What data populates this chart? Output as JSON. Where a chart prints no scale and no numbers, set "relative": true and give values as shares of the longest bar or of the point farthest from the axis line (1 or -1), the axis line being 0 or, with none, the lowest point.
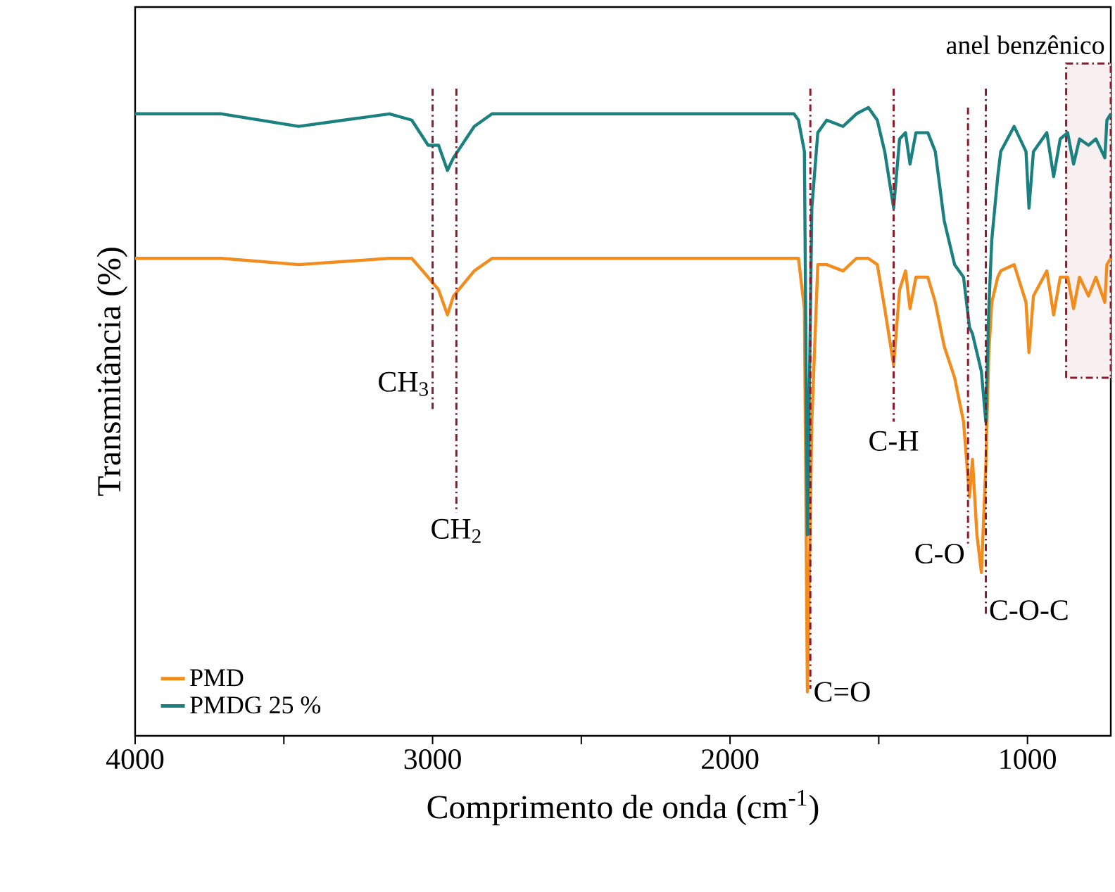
{
  "chart_data": {
    "type": "line",
    "relative": true,
    "xlabel": "Comprimento de onda (cm$^{-1}$)",
    "ylabel": "Transmitância (%)",
    "xlim": [
      4000,
      720
    ],
    "xticks": [
      4000,
      {
        "value": 3500,
        "label": null
      },
      3000,
      {
        "value": 2500,
        "label": null
      },
      2000,
      {
        "value": 1500,
        "label": null
      },
      1000
    ],
    "legend": "bottom left",
    "line_style": "solid",
    "x": [
      4000,
      3710,
      3450,
      3145,
      3070,
      3015,
      2980,
      2950,
      2930,
      2860,
      2800,
      1785,
      1770,
      1750,
      1740,
      1725,
      1705,
      1675,
      1620,
      1575,
      1535,
      1505,
      1480,
      1450,
      1430,
      1410,
      1395,
      1375,
      1335,
      1310,
      1280,
      1245,
      1215,
      1195,
      1185,
      1170,
      1155,
      1140,
      1130,
      1120,
      1100,
      1090,
      1045,
      1005,
      995,
      980,
      935,
      912,
      890,
      865,
      845,
      825,
      795,
      770,
      740,
      733,
      720
    ],
    "series": [
      {
        "name": "PMD",
        "color": "#f28c1c",
        "values": [
          0.76,
          0.76,
          0.75,
          0.76,
          0.76,
          0.73,
          0.71,
          0.67,
          0.7,
          0.74,
          0.76,
          0.76,
          0.76,
          0.68,
          0.07,
          0.5,
          0.75,
          0.75,
          0.74,
          0.76,
          0.76,
          0.75,
          0.68,
          0.59,
          0.71,
          0.74,
          0.68,
          0.73,
          0.73,
          0.69,
          0.62,
          0.57,
          0.5,
          0.38,
          0.44,
          0.32,
          0.26,
          0.43,
          0.61,
          0.69,
          0.73,
          0.74,
          0.75,
          0.69,
          0.61,
          0.7,
          0.74,
          0.67,
          0.73,
          0.73,
          0.68,
          0.73,
          0.7,
          0.73,
          0.69,
          0.75,
          0.76
        ]
      },
      {
        "name": "PMDG 25 %",
        "color": "#1a8080",
        "values": [
          0.99,
          0.99,
          0.97,
          0.99,
          0.98,
          0.94,
          0.94,
          0.9,
          0.92,
          0.97,
          0.99,
          0.99,
          0.98,
          0.93,
          0.32,
          0.84,
          0.96,
          0.98,
          0.97,
          0.99,
          1.0,
          0.98,
          0.93,
          0.84,
          0.95,
          0.96,
          0.91,
          0.96,
          0.96,
          0.93,
          0.82,
          0.75,
          0.73,
          0.65,
          0.64,
          0.61,
          0.58,
          0.5,
          0.68,
          0.79,
          0.89,
          0.93,
          0.97,
          0.93,
          0.84,
          0.93,
          0.96,
          0.89,
          0.95,
          0.96,
          0.91,
          0.95,
          0.94,
          0.95,
          0.92,
          0.98,
          0.99
        ]
      }
    ],
    "ref_lines": [
      {
        "axis": "x",
        "value": 3000,
        "label": "CH$_{3}$",
        "color": "#8b1a2b",
        "line_style": "dashdot"
      },
      {
        "axis": "x",
        "value": 2920,
        "label": "CH$_{2}$",
        "color": "#8b1a2b",
        "line_style": "dashdot"
      },
      {
        "axis": "x",
        "value": 1730,
        "label": "C=O",
        "color": "#8b1a2b",
        "line_style": "dashdot"
      },
      {
        "axis": "x",
        "value": 1450,
        "label": "C-H",
        "color": "#8b1a2b",
        "line_style": "dashdot"
      },
      {
        "axis": "x",
        "value": 1200,
        "label": "C-O",
        "color": "#8b1a2b",
        "line_style": "dashdot"
      },
      {
        "axis": "x",
        "value": 1140,
        "label": "C-O-C",
        "color": "#8b1a2b",
        "line_style": "dashdot"
      }
    ],
    "bands": [
      {
        "axis": "x",
        "from": 870,
        "to": 720,
        "label": "anel benzênico",
        "color": "#8b1a2b"
      }
    ]
  }
}
